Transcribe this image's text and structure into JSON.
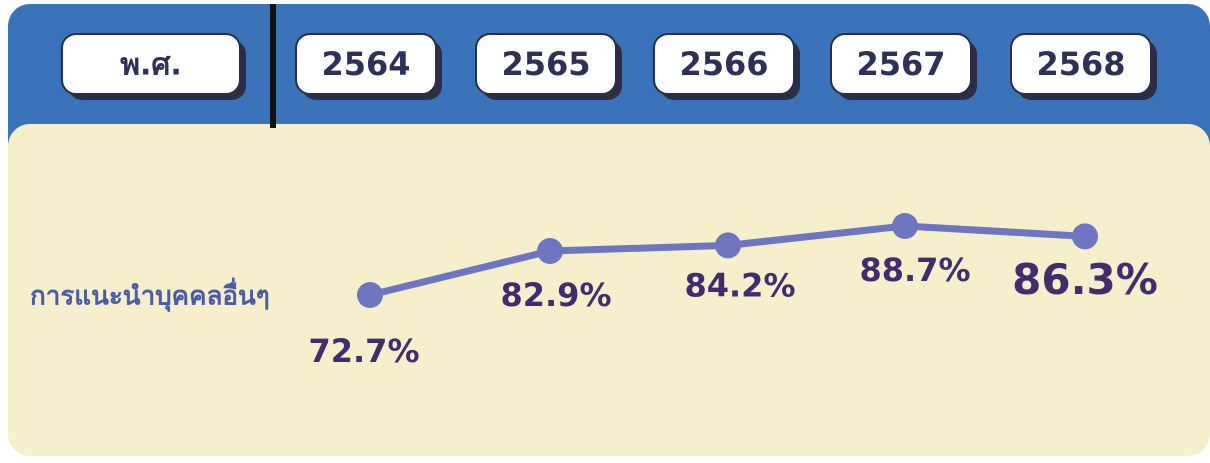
{
  "chart_data": {
    "type": "line",
    "xlabel": "พ.ศ.",
    "categories": [
      "2564",
      "2565",
      "2566",
      "2567",
      "2568"
    ],
    "series": [
      {
        "name": "การแนะนำบุคคลอื่นๆ",
        "color": "#6e76c2",
        "values": [
          72.7,
          82.9,
          84.2,
          88.7,
          86.3
        ],
        "value_labels": [
          "72.7%",
          "82.9%",
          "84.2%",
          "88.7%",
          "86.3%"
        ]
      }
    ]
  }
}
